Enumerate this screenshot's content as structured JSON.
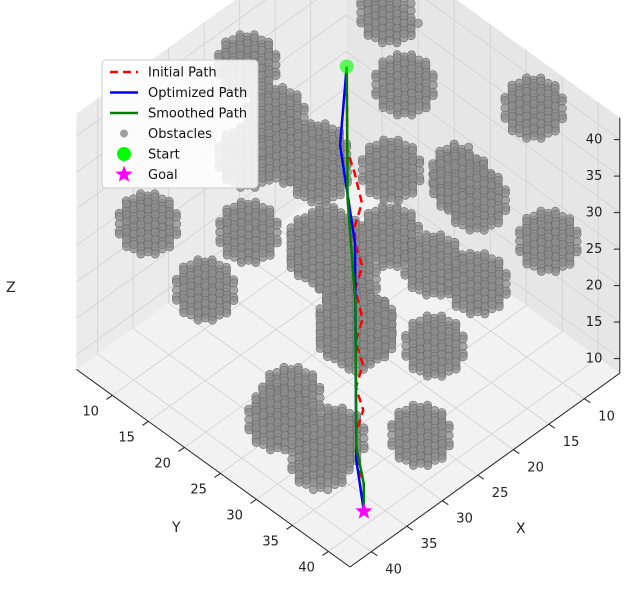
{
  "chart_data": {
    "type": "scatter",
    "projection": "3d",
    "xlabel": "X",
    "ylabel": "Y",
    "zlabel": "Z",
    "xlim": [
      5,
      43
    ],
    "ylim": [
      5,
      43
    ],
    "zlim": [
      8,
      43
    ],
    "x_ticks": [
      10,
      15,
      20,
      25,
      30,
      35,
      40
    ],
    "y_ticks": [
      10,
      15,
      20,
      25,
      30,
      35,
      40
    ],
    "z_ticks": [
      10,
      15,
      20,
      25,
      30,
      35,
      40
    ],
    "grid": true,
    "legend_position": "top-left",
    "legend": [
      {
        "label": "Initial Path",
        "color": "#ff0000",
        "style": "dashed"
      },
      {
        "label": "Optimized Path",
        "color": "#0000ff",
        "style": "solid"
      },
      {
        "label": "Smoothed Path",
        "color": "#008000",
        "style": "solid"
      },
      {
        "label": "Obstacles",
        "color": "#808080",
        "style": "dot"
      },
      {
        "label": "Start",
        "color": "#00ff00",
        "style": "circle"
      },
      {
        "label": "Goal",
        "color": "#ff00ff",
        "style": "star"
      }
    ],
    "series": [
      {
        "name": "Initial Path",
        "points": [
          [
            10,
            10,
            30
          ],
          [
            12,
            12,
            29
          ],
          [
            14,
            14,
            28.5
          ],
          [
            16,
            16,
            27
          ],
          [
            17,
            18,
            26
          ],
          [
            18,
            20,
            24
          ],
          [
            20,
            21,
            23
          ],
          [
            21,
            22,
            22
          ],
          [
            22,
            24,
            21
          ],
          [
            24,
            25,
            20
          ],
          [
            25,
            27,
            18
          ],
          [
            27,
            28,
            17
          ],
          [
            28,
            30,
            16
          ],
          [
            30,
            31,
            15
          ],
          [
            31,
            33,
            14
          ],
          [
            33,
            34,
            13
          ],
          [
            35,
            36,
            12
          ],
          [
            36,
            38,
            11
          ],
          [
            38,
            40,
            10
          ]
        ]
      },
      {
        "name": "Optimized Path",
        "points": [
          [
            10,
            10,
            30
          ],
          [
            16,
            15,
            27
          ],
          [
            21,
            22,
            22
          ],
          [
            26,
            27,
            18
          ],
          [
            31,
            32,
            14
          ],
          [
            35,
            36,
            12
          ],
          [
            38,
            40,
            10
          ]
        ]
      },
      {
        "name": "Smoothed Path",
        "points": [
          [
            10,
            10,
            30
          ],
          [
            13,
            13,
            28.5
          ],
          [
            16,
            16,
            26.5
          ],
          [
            19,
            19,
            24.5
          ],
          [
            22,
            22.5,
            22
          ],
          [
            25,
            26,
            19.5
          ],
          [
            28,
            29,
            17
          ],
          [
            31,
            32,
            14.5
          ],
          [
            34,
            35,
            12.5
          ],
          [
            36,
            38,
            11
          ],
          [
            38,
            40,
            10
          ]
        ]
      },
      {
        "name": "Start",
        "points": [
          [
            10,
            10,
            30
          ]
        ]
      },
      {
        "name": "Goal",
        "points": [
          [
            38,
            40,
            10
          ]
        ]
      }
    ],
    "obstacles": [
      [
        8,
        34,
        40,
        3
      ],
      [
        24,
        10,
        40,
        3
      ],
      [
        12,
        20,
        36,
        3
      ],
      [
        22,
        28,
        37,
        3
      ],
      [
        28,
        14,
        33,
        3
      ],
      [
        36,
        22,
        34,
        3
      ],
      [
        14,
        30,
        31,
        3
      ],
      [
        20,
        10,
        30,
        3
      ],
      [
        34,
        36,
        30,
        3
      ],
      [
        27,
        24,
        27,
        4
      ],
      [
        10,
        38,
        26,
        3
      ],
      [
        18,
        14,
        24,
        3
      ],
      [
        30,
        31,
        23,
        4
      ],
      [
        6,
        22,
        21,
        3
      ],
      [
        24,
        36,
        20,
        3
      ],
      [
        34,
        14,
        19,
        3
      ],
      [
        14,
        26,
        17,
        3
      ],
      [
        20,
        20,
        15,
        3
      ],
      [
        38,
        28,
        14,
        3
      ],
      [
        28,
        38,
        12,
        3
      ],
      [
        10,
        16,
        11,
        3
      ],
      [
        32,
        24,
        10,
        3
      ],
      [
        16,
        34,
        33,
        3
      ],
      [
        26,
        18,
        35,
        3
      ],
      [
        38,
        10,
        28,
        3
      ],
      [
        12,
        8,
        18,
        3
      ],
      [
        40,
        38,
        20,
        3
      ],
      [
        22,
        40,
        30,
        3
      ],
      [
        6,
        12,
        36,
        3
      ],
      [
        36,
        32,
        10,
        3
      ]
    ]
  }
}
